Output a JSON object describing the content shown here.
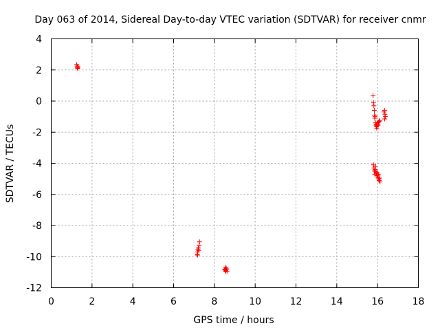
{
  "chart_data": {
    "type": "scatter",
    "title": "Day 063 of 2014, Sidereal Day-to-day VTEC variation (SDTVAR) for receiver cnmr",
    "xlabel": "GPS time / hours",
    "ylabel": "SDTVAR / TECUs",
    "xlim": [
      0,
      18
    ],
    "ylim": [
      -12,
      4
    ],
    "xticks": [
      "0",
      "2",
      "4",
      "6",
      "8",
      "10",
      "12",
      "14",
      "16",
      "18"
    ],
    "yticks": [
      "4",
      "2",
      "0",
      "-2",
      "-4",
      "-6",
      "-8",
      "-10",
      "-12"
    ],
    "grid": true,
    "marker": "+",
    "color": "#ff0000",
    "series": [
      {
        "name": "SDTVAR",
        "points": [
          [
            1.25,
            2.35
          ],
          [
            1.27,
            2.25
          ],
          [
            1.28,
            2.15
          ],
          [
            1.3,
            2.1
          ],
          [
            1.32,
            2.2
          ],
          [
            7.15,
            -9.85
          ],
          [
            7.17,
            -9.7
          ],
          [
            7.19,
            -9.55
          ],
          [
            7.21,
            -9.45
          ],
          [
            7.23,
            -9.6
          ],
          [
            7.25,
            -9.3
          ],
          [
            7.27,
            -9.05
          ],
          [
            7.18,
            -9.9
          ],
          [
            8.5,
            -10.85
          ],
          [
            8.52,
            -10.8
          ],
          [
            8.54,
            -10.95
          ],
          [
            8.56,
            -10.9
          ],
          [
            8.58,
            -10.75
          ],
          [
            8.6,
            -10.85
          ],
          [
            8.62,
            -10.95
          ],
          [
            8.55,
            -10.7
          ],
          [
            15.78,
            0.35
          ],
          [
            15.8,
            -0.1
          ],
          [
            15.82,
            -0.3
          ],
          [
            15.84,
            -0.6
          ],
          [
            15.85,
            -0.9
          ],
          [
            15.86,
            -1.1
          ],
          [
            15.88,
            -1.0
          ],
          [
            15.9,
            -1.4
          ],
          [
            15.92,
            -1.55
          ],
          [
            15.94,
            -1.65
          ],
          [
            15.96,
            -1.75
          ],
          [
            15.98,
            -1.6
          ],
          [
            16.0,
            -1.5
          ],
          [
            16.02,
            -1.4
          ],
          [
            16.05,
            -1.35
          ],
          [
            16.08,
            -1.3
          ],
          [
            16.1,
            -1.25
          ],
          [
            15.95,
            -1.5
          ],
          [
            16.03,
            -1.55
          ],
          [
            16.32,
            -0.7
          ],
          [
            16.34,
            -0.6
          ],
          [
            16.36,
            -0.85
          ],
          [
            16.38,
            -1.0
          ],
          [
            16.35,
            -1.15
          ],
          [
            15.8,
            -4.1
          ],
          [
            15.82,
            -4.3
          ],
          [
            15.84,
            -4.5
          ],
          [
            15.86,
            -4.7
          ],
          [
            15.88,
            -4.4
          ],
          [
            15.9,
            -4.2
          ],
          [
            15.92,
            -4.55
          ],
          [
            15.94,
            -4.65
          ],
          [
            15.96,
            -4.8
          ],
          [
            15.98,
            -4.6
          ],
          [
            16.0,
            -4.9
          ],
          [
            16.02,
            -4.75
          ],
          [
            16.05,
            -5.0
          ],
          [
            16.08,
            -5.1
          ],
          [
            16.1,
            -4.95
          ],
          [
            16.12,
            -5.2
          ],
          [
            16.03,
            -4.7
          ]
        ]
      }
    ]
  }
}
